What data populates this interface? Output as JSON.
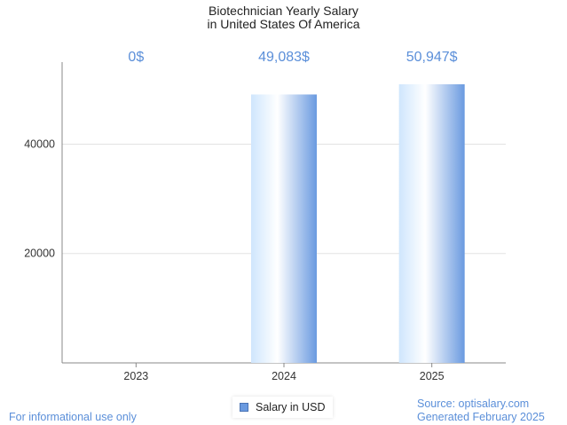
{
  "chart_data": {
    "type": "bar",
    "title": [
      "Biotechnician Yearly Salary",
      "in United States Of America"
    ],
    "categories": [
      "2023",
      "2024",
      "2025"
    ],
    "series": [
      {
        "name": "Salary in USD",
        "values": [
          0,
          49083,
          50947
        ]
      }
    ],
    "data_labels": [
      "0$",
      "49,083$",
      "50,947$"
    ],
    "yticks": [
      20000,
      40000
    ],
    "ytick_labels": [
      "20000",
      "40000"
    ],
    "ylim": [
      0,
      55000
    ],
    "xlabel": "",
    "ylabel": "",
    "grid": true,
    "legend": "bottom-center"
  },
  "colors": {
    "bar_light": "#ffffff",
    "bar_mid": "#cfe6fd",
    "bar_dark": "#6a9ae0",
    "label": "#5b8fd9"
  },
  "footer": {
    "left": "For informational use only",
    "source": "Source: optisalary.com",
    "generated": "Generated February 2025"
  }
}
